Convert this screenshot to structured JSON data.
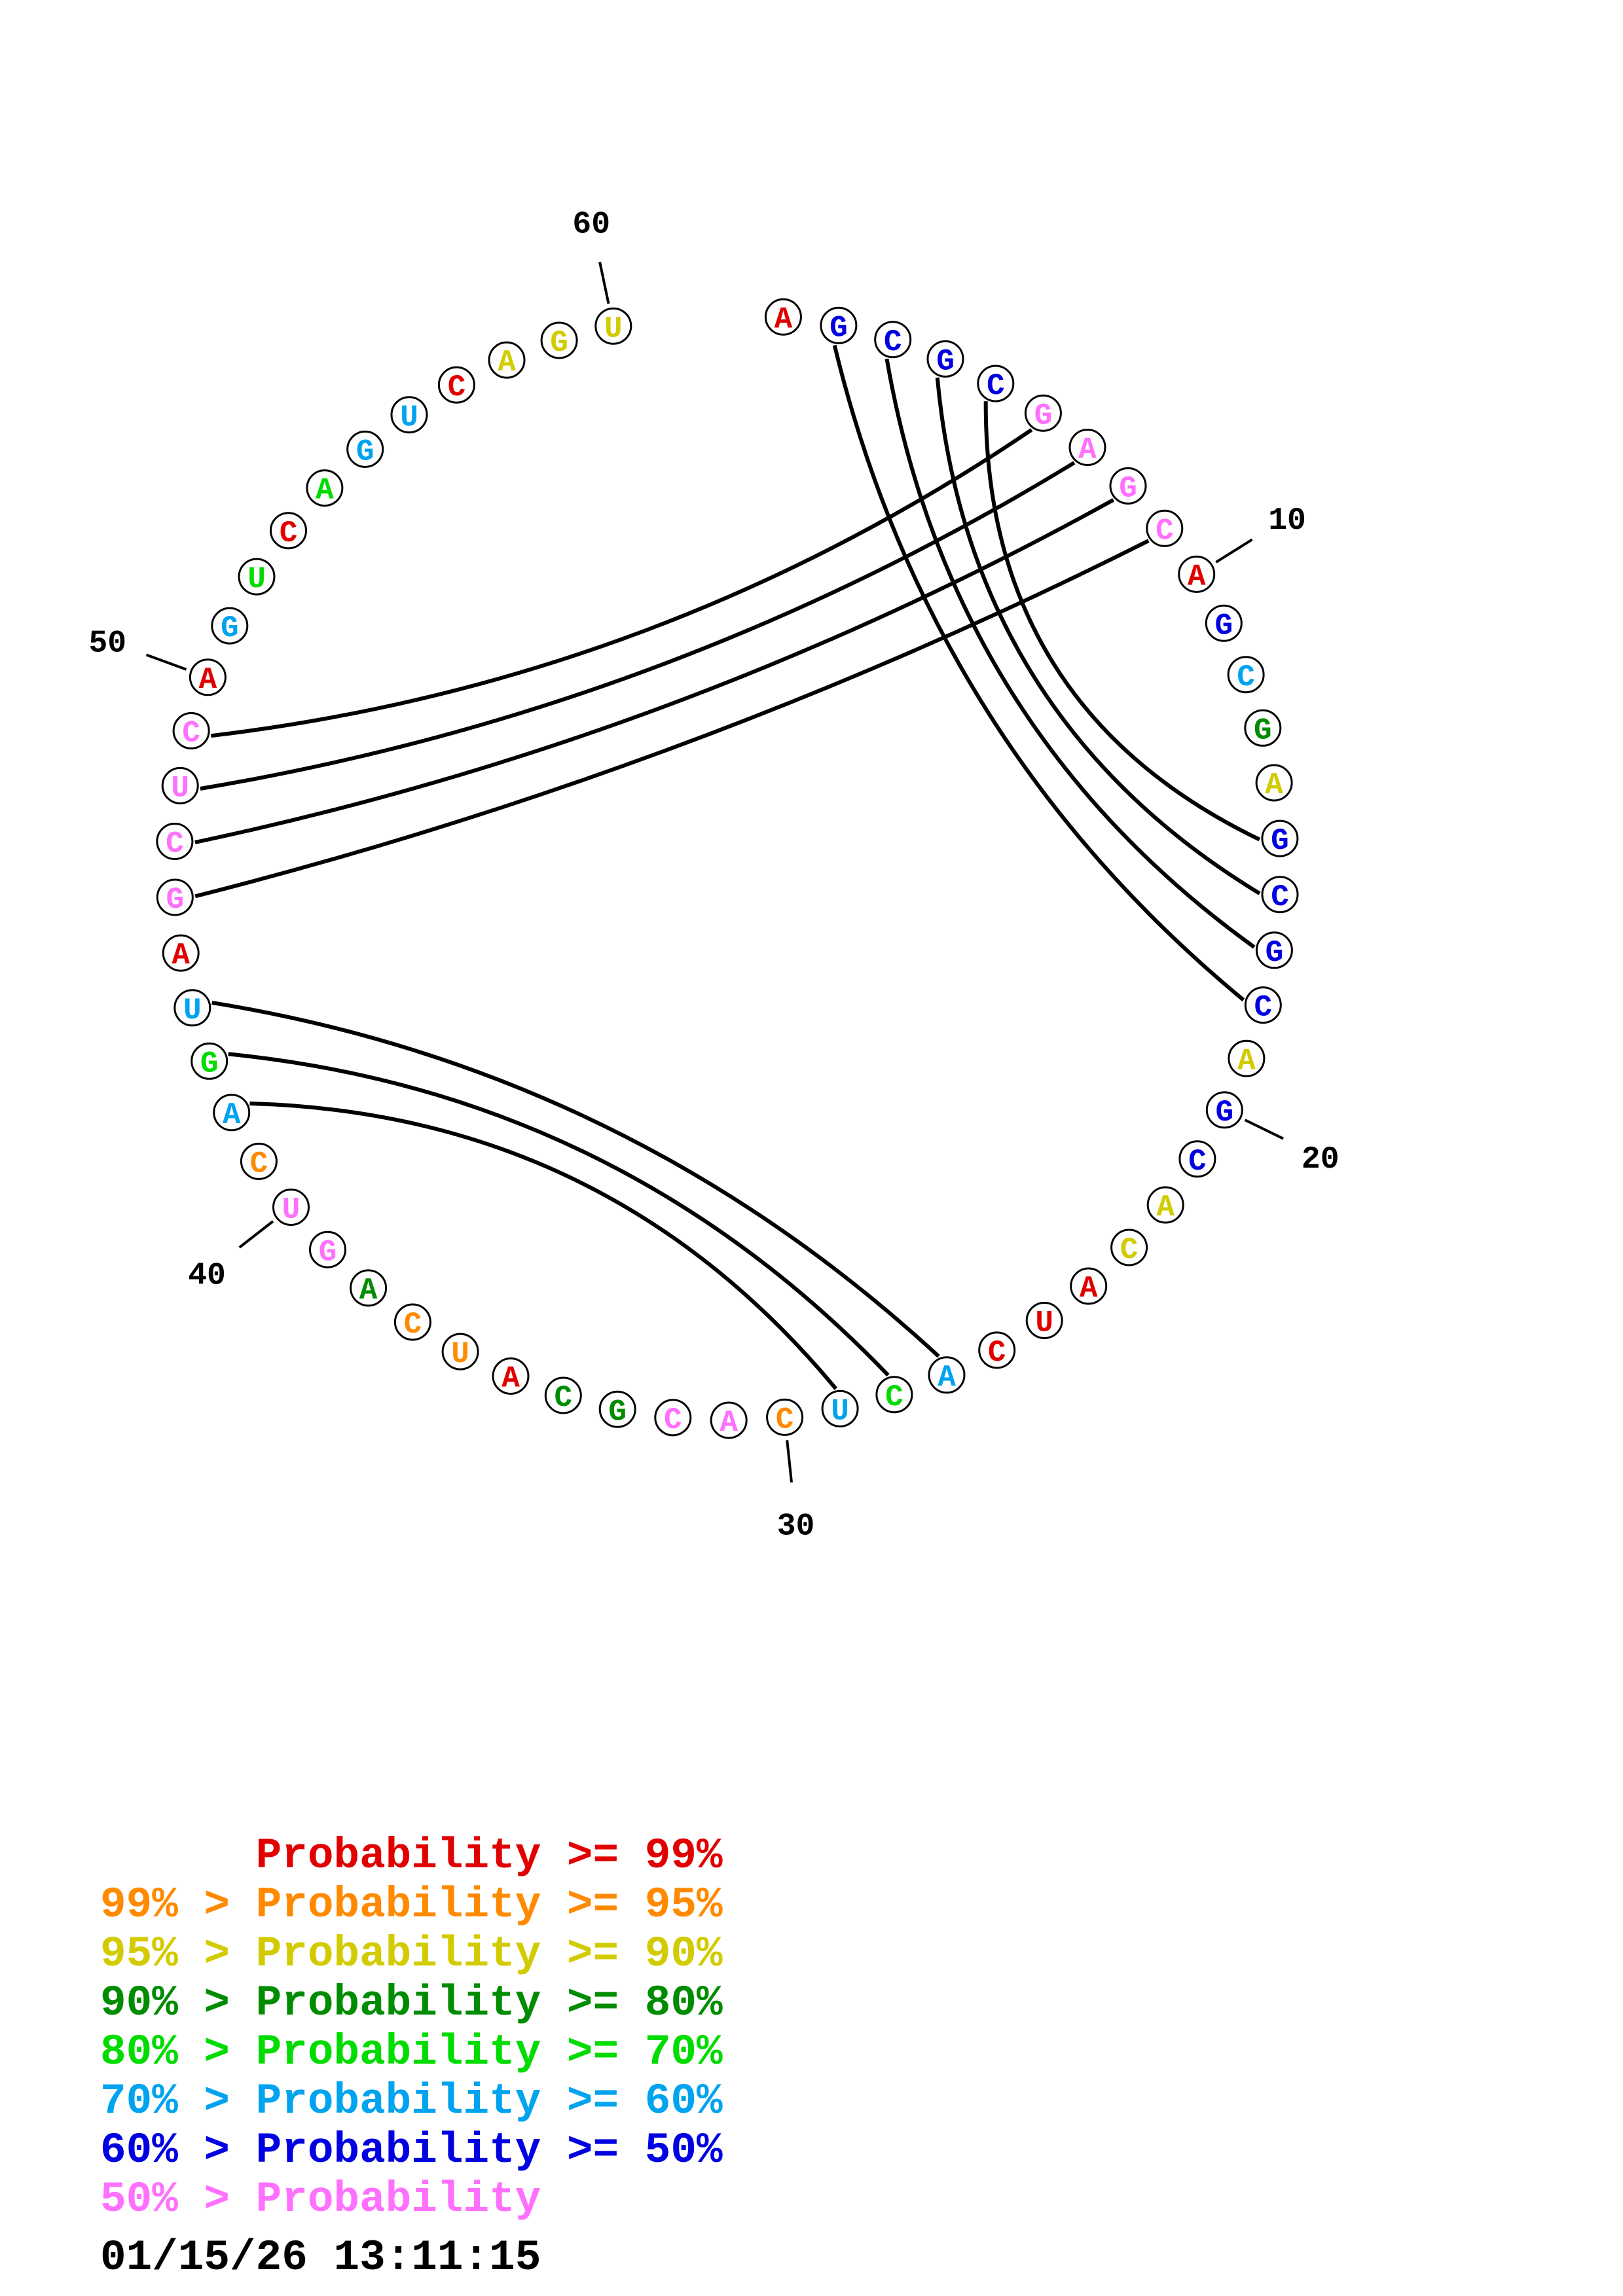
{
  "timestamp": "01/15/26 13:11:15",
  "legend": {
    "lines": [
      {
        "text": "      Probability >= 99%",
        "cls": "p99"
      },
      {
        "text": "99% > Probability >= 95%",
        "cls": "p95"
      },
      {
        "text": "95% > Probability >= 90%",
        "cls": "p90"
      },
      {
        "text": "90% > Probability >= 80%",
        "cls": "p80"
      },
      {
        "text": "80% > Probability >= 70%",
        "cls": "p70"
      },
      {
        "text": "70% > Probability >= 60%",
        "cls": "p60"
      },
      {
        "text": "60% > Probability >= 50%",
        "cls": "p50"
      },
      {
        "text": "50% > Probability",
        "cls": "lt50"
      }
    ]
  },
  "chart_data": {
    "type": "other",
    "subtype": "rna-circle-plot",
    "description": "Circular RNA secondary structure plot; nucleotides colored by base-pair probability class, black chords are predicted base pairs",
    "prob_colors": {
      "p99": "#e10000",
      "p95": "#ff8a00",
      "p90": "#d2cb00",
      "p80": "#008c00",
      "p70": "#00dc00",
      "p60": "#00a3ee",
      "p50": "#0000e0",
      "lt50": "#ff70ff"
    },
    "sequence": [
      {
        "p": 1,
        "b": "A",
        "c": "p99"
      },
      {
        "p": 2,
        "b": "G",
        "c": "p50"
      },
      {
        "p": 3,
        "b": "C",
        "c": "p50"
      },
      {
        "p": 4,
        "b": "G",
        "c": "p50"
      },
      {
        "p": 5,
        "b": "C",
        "c": "p50"
      },
      {
        "p": 6,
        "b": "G",
        "c": "lt50"
      },
      {
        "p": 7,
        "b": "A",
        "c": "lt50"
      },
      {
        "p": 8,
        "b": "G",
        "c": "lt50"
      },
      {
        "p": 9,
        "b": "C",
        "c": "lt50"
      },
      {
        "p": 10,
        "b": "A",
        "c": "p99"
      },
      {
        "p": 11,
        "b": "G",
        "c": "p50"
      },
      {
        "p": 12,
        "b": "C",
        "c": "p60"
      },
      {
        "p": 13,
        "b": "G",
        "c": "p80"
      },
      {
        "p": 14,
        "b": "A",
        "c": "p90"
      },
      {
        "p": 15,
        "b": "G",
        "c": "p50"
      },
      {
        "p": 16,
        "b": "C",
        "c": "p50"
      },
      {
        "p": 17,
        "b": "G",
        "c": "p50"
      },
      {
        "p": 18,
        "b": "C",
        "c": "p50"
      },
      {
        "p": 19,
        "b": "A",
        "c": "p90"
      },
      {
        "p": 20,
        "b": "G",
        "c": "p50"
      },
      {
        "p": 21,
        "b": "C",
        "c": "p50"
      },
      {
        "p": 22,
        "b": "A",
        "c": "p90"
      },
      {
        "p": 23,
        "b": "C",
        "c": "p90"
      },
      {
        "p": 24,
        "b": "A",
        "c": "p99"
      },
      {
        "p": 25,
        "b": "U",
        "c": "p99"
      },
      {
        "p": 26,
        "b": "C",
        "c": "p99"
      },
      {
        "p": 27,
        "b": "A",
        "c": "p60"
      },
      {
        "p": 28,
        "b": "C",
        "c": "p70"
      },
      {
        "p": 29,
        "b": "U",
        "c": "p60"
      },
      {
        "p": 30,
        "b": "C",
        "c": "p95"
      },
      {
        "p": 31,
        "b": "A",
        "c": "lt50"
      },
      {
        "p": 32,
        "b": "C",
        "c": "lt50"
      },
      {
        "p": 33,
        "b": "G",
        "c": "p80"
      },
      {
        "p": 34,
        "b": "C",
        "c": "p80"
      },
      {
        "p": 35,
        "b": "A",
        "c": "p99"
      },
      {
        "p": 36,
        "b": "U",
        "c": "p95"
      },
      {
        "p": 37,
        "b": "C",
        "c": "p95"
      },
      {
        "p": 38,
        "b": "A",
        "c": "p80"
      },
      {
        "p": 39,
        "b": "G",
        "c": "lt50"
      },
      {
        "p": 40,
        "b": "U",
        "c": "lt50"
      },
      {
        "p": 41,
        "b": "C",
        "c": "p95"
      },
      {
        "p": 42,
        "b": "A",
        "c": "p60"
      },
      {
        "p": 43,
        "b": "G",
        "c": "p70"
      },
      {
        "p": 44,
        "b": "U",
        "c": "p60"
      },
      {
        "p": 45,
        "b": "A",
        "c": "p99"
      },
      {
        "p": 46,
        "b": "G",
        "c": "lt50"
      },
      {
        "p": 47,
        "b": "C",
        "c": "lt50"
      },
      {
        "p": 48,
        "b": "U",
        "c": "lt50"
      },
      {
        "p": 49,
        "b": "C",
        "c": "lt50"
      },
      {
        "p": 50,
        "b": "A",
        "c": "p99"
      },
      {
        "p": 51,
        "b": "G",
        "c": "p60"
      },
      {
        "p": 52,
        "b": "U",
        "c": "p70"
      },
      {
        "p": 53,
        "b": "C",
        "c": "p99"
      },
      {
        "p": 54,
        "b": "A",
        "c": "p70"
      },
      {
        "p": 55,
        "b": "G",
        "c": "p60"
      },
      {
        "p": 56,
        "b": "U",
        "c": "p60"
      },
      {
        "p": 57,
        "b": "C",
        "c": "p99"
      },
      {
        "p": 58,
        "b": "A",
        "c": "p90"
      },
      {
        "p": 59,
        "b": "G",
        "c": "p90"
      },
      {
        "p": 60,
        "b": "U",
        "c": "p90"
      }
    ],
    "base_pairs": [
      [
        2,
        18
      ],
      [
        3,
        17
      ],
      [
        4,
        16
      ],
      [
        5,
        15
      ],
      [
        6,
        49
      ],
      [
        7,
        48
      ],
      [
        8,
        47
      ],
      [
        9,
        46
      ],
      [
        27,
        44
      ],
      [
        28,
        43
      ],
      [
        29,
        42
      ]
    ],
    "position_tick_labels": [
      10,
      20,
      30,
      40,
      50,
      60
    ]
  }
}
